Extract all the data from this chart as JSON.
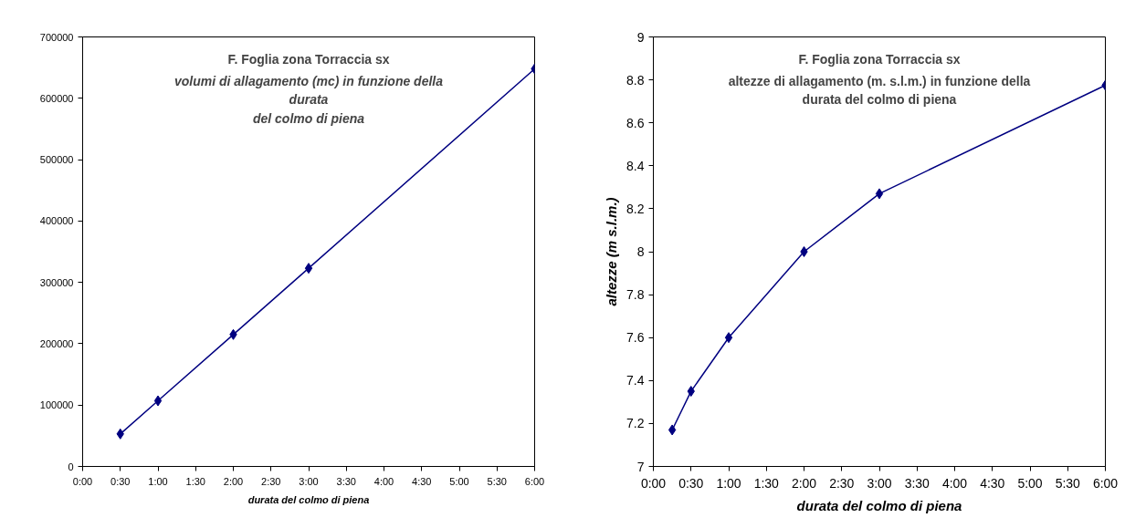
{
  "chart_data": [
    {
      "type": "line",
      "title": "F. Foglia zona Torraccia sx",
      "subtitle": "volumi di allagamento (mc) in funzione della\ndurata\ndel colmo di piena",
      "xlabel": "durata del colmo di piena",
      "x": [
        0.5,
        1,
        2,
        3,
        6
      ],
      "series": [
        {
          "color": "#000080",
          "values": [
            53000,
            107000,
            215000,
            323000,
            648000
          ]
        }
      ],
      "xlim": [
        0,
        6
      ],
      "xticks": [
        {
          "value": 0,
          "label": "0:00"
        },
        {
          "value": 0.5,
          "label": "0:30"
        },
        {
          "value": 1,
          "label": "1:00"
        },
        {
          "value": 1.5,
          "label": "1:30"
        },
        {
          "value": 2,
          "label": "2:00"
        },
        {
          "value": 2.5,
          "label": "2:30"
        },
        {
          "value": 3,
          "label": "3:00"
        },
        {
          "value": 3.5,
          "label": "3:30"
        },
        {
          "value": 4,
          "label": "4:00"
        },
        {
          "value": 4.5,
          "label": "4:30"
        },
        {
          "value": 5,
          "label": "5:00"
        },
        {
          "value": 5.5,
          "label": "5:30"
        },
        {
          "value": 6,
          "label": "6:00"
        }
      ],
      "ylim": [
        0,
        700000
      ],
      "yticks": [
        0,
        100000,
        200000,
        300000,
        400000,
        500000,
        600000,
        700000
      ],
      "grid": false,
      "marker": "diamond",
      "line_style": "solid"
    },
    {
      "type": "line",
      "title": "F. Foglia zona Torraccia sx",
      "subtitle": "altezze di allagamento (m. s.l.m.) in funzione della\ndurata del colmo di piena",
      "xlabel": "durata del colmo di piena",
      "ylabel": "altezze (m s.l.m.)",
      "x": [
        0.25,
        0.5,
        1,
        2,
        3,
        6
      ],
      "series": [
        {
          "color": "#000080",
          "values": [
            7.17,
            7.35,
            7.6,
            8.0,
            8.27,
            8.775
          ]
        }
      ],
      "xlim": [
        0,
        6
      ],
      "xticks": [
        {
          "value": 0,
          "label": "0:00"
        },
        {
          "value": 0.5,
          "label": "0:30"
        },
        {
          "value": 1,
          "label": "1:00"
        },
        {
          "value": 1.5,
          "label": "1:30"
        },
        {
          "value": 2,
          "label": "2:00"
        },
        {
          "value": 2.5,
          "label": "2:30"
        },
        {
          "value": 3,
          "label": "3:00"
        },
        {
          "value": 3.5,
          "label": "3:30"
        },
        {
          "value": 4,
          "label": "4:00"
        },
        {
          "value": 4.5,
          "label": "4:30"
        },
        {
          "value": 5,
          "label": "5:00"
        },
        {
          "value": 5.5,
          "label": "5:30"
        },
        {
          "value": 6,
          "label": "6:00"
        }
      ],
      "ylim": [
        7,
        9
      ],
      "yticks": [
        7,
        7.2,
        7.4,
        7.6,
        7.8,
        8,
        8.2,
        8.4,
        8.6,
        8.8,
        9
      ],
      "grid": false,
      "marker": "diamond",
      "line_style": "solid"
    }
  ]
}
